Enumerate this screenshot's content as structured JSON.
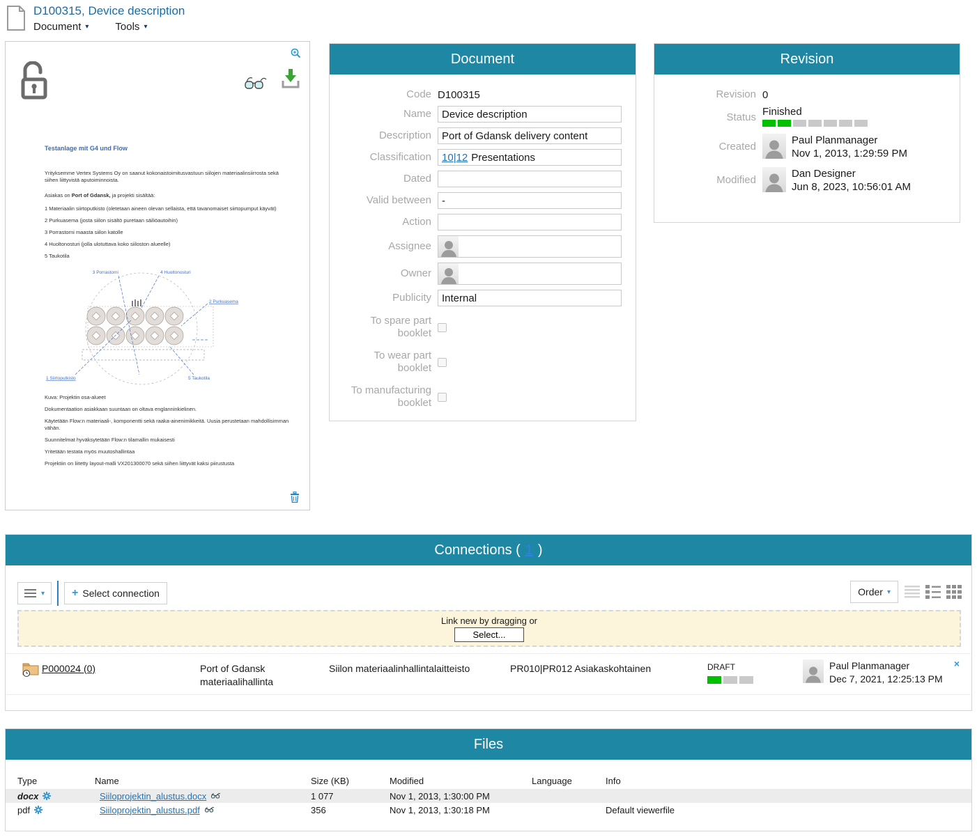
{
  "header": {
    "title": "D100315, Device description",
    "menu_document": "Document",
    "menu_tools": "Tools"
  },
  "preview": {
    "doc_heading": "Testanlage mit G4 und Flow",
    "para1": "Yrityksemme Vertex Systems Oy on saanut kokonaistoimitusvastuun siilojen materiaalinsiirrosta sekä siihen liittyvistä aputoiminnoista.",
    "para2_prefix": "Asiakas on ",
    "para2_bold": "Port of Gdansk,",
    "para2_suffix": " ja projekti sisältää:",
    "list1": "1 Materiaalin siirtoputkisto (oletetaan aineen olevan sellaista, että tavanomaiset siirtopumput käyvät)",
    "list2": "2 Purkuasema (josta siilon sisältö puretaan säiliöautoihin)",
    "list3": "3 Porrastorni maasta siilon katolle",
    "list4": "4 Huoltonosturi (jolla ulotuttava koko siiloston alueelle)",
    "list5": "5 Taukotila",
    "diagram": {
      "l_topleft": "3 Porrastorni",
      "l_topright": "4 Huoltonosturi",
      "l_right": "2 Purkuasema",
      "l_bottomleft": "1 Siirtoputkisto",
      "l_bottomright": "5 Taukotila"
    },
    "caption": "Kuva: Projektin osa-alueet",
    "para3": "Dokumentaation asiakkaan suuntaan on oltava englanninkielinen.",
    "para4": "Käytetään Flow:n materiaali-, komponentti sekä raaka-ainenimikkeitä. Uusia perustetaan mahdollisimman vähän.",
    "para5": "Suunnitelmat hyväksytetään Flow:n tilamallin mukaisesti",
    "para6": "Yritetään testata myös muutoshallintaa",
    "para7": "Projektiin on liitetty layout-malli VX201300070 sekä siihen liittyvät kaksi piirustusta"
  },
  "document_panel": {
    "title": "Document",
    "labels": {
      "code": "Code",
      "name": "Name",
      "description": "Description",
      "classification": "Classification",
      "dated": "Dated",
      "valid_between": "Valid between",
      "action": "Action",
      "assignee": "Assignee",
      "owner": "Owner",
      "publicity": "Publicity",
      "spare": "To spare part booklet",
      "wear": "To wear part booklet",
      "manufacturing": "To manufacturing booklet"
    },
    "values": {
      "code": "D100315",
      "name": "Device description",
      "description": "Port of Gdansk delivery content",
      "classification_link1": "10",
      "classification_sep": "|",
      "classification_link2": "12",
      "classification_text": "Presentations",
      "dated": "",
      "valid_between": "-",
      "action": "",
      "publicity": "Internal"
    }
  },
  "revision_panel": {
    "title": "Revision",
    "labels": {
      "revision": "Revision",
      "status": "Status",
      "created": "Created",
      "modified": "Modified"
    },
    "revision": "0",
    "status": "Finished",
    "status_total": 7,
    "status_filled": 2,
    "created_by": "Paul Planmanager",
    "created_at": "Nov 1, 2013, 1:29:59 PM",
    "modified_by": "Dan Designer",
    "modified_at": "Jun 8, 2023, 10:56:01 AM"
  },
  "connections": {
    "title_prefix": "Connections (",
    "count": "1",
    "title_suffix": ")",
    "select_connection": "Select connection",
    "order_label": "Order",
    "dropzone_text": "Link new by dragging or",
    "dropzone_button": "Select...",
    "row": {
      "code_link": "P000024 (0)",
      "name_line1": "Port of Gdansk",
      "name_line2": "materiaalihallinta",
      "description": "Siilon materiaalinhallintalaitteisto",
      "classification": "PR010|PR012 Asiakaskohtainen",
      "status": "DRAFT",
      "status_total": 3,
      "status_filled": 1,
      "modified_by": "Paul Planmanager",
      "modified_at": "Dec 7, 2021, 12:25:13 PM"
    }
  },
  "files": {
    "title": "Files",
    "columns": [
      "Type",
      "Name",
      "Size (KB)",
      "Modified",
      "Language",
      "Info"
    ],
    "rows": [
      {
        "type": "docx",
        "name": "Siiloprojektin_alustus.docx",
        "size": "1 077",
        "modified": "Nov 1, 2013, 1:30:00 PM",
        "language": "",
        "info": ""
      },
      {
        "type": "pdf",
        "name": "Siiloprojektin_alustus.pdf",
        "size": "356",
        "modified": "Nov 1, 2013, 1:30:18 PM",
        "language": "",
        "info": "Default viewerfile"
      }
    ]
  },
  "colors": {
    "header_teal": "#1d87a4",
    "link_blue": "#2273b8",
    "title_blue": "#1d6ba5",
    "progress_green": "#00c000",
    "progress_gray": "#c9c9c9",
    "dropzone_bg": "#fcf5db",
    "row_highlight": "#ececec",
    "download_green": "#3aa435"
  }
}
